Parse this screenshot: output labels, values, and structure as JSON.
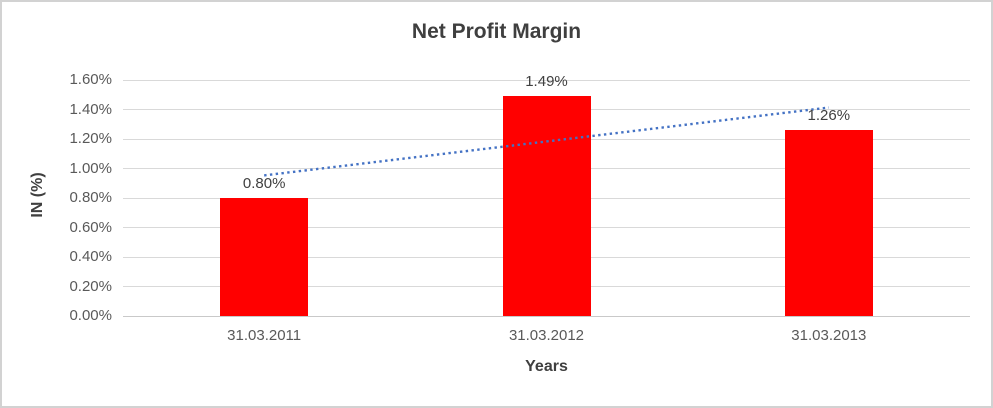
{
  "chart_data": {
    "type": "bar",
    "title": "Net Profit Margin",
    "xlabel": "Years",
    "ylabel": "IN (%)",
    "categories": [
      "31.03.2011",
      "31.03.2012",
      "31.03.2013"
    ],
    "series": [
      {
        "name": "Net Profit Margin",
        "values": [
          0.8,
          1.49,
          1.26
        ]
      }
    ],
    "data_labels": [
      "0.80%",
      "1.49%",
      "1.26%"
    ],
    "y_ticks": [
      "0.00%",
      "0.20%",
      "0.40%",
      "0.60%",
      "0.80%",
      "1.00%",
      "1.20%",
      "1.40%",
      "1.60%"
    ],
    "ylim": [
      0,
      1.6
    ],
    "grid": true,
    "legend": "none",
    "trendline": {
      "type": "linear",
      "style": "dotted",
      "span": "first-to-last-category"
    },
    "colors": {
      "bar": "#ff0000",
      "trendline": "#4472c4",
      "gridline": "#d9d9d9",
      "axis_text": "#595959",
      "title_text": "#3f3f3f",
      "data_label_text": "#404040",
      "chart_border": "#d2d2d2",
      "background": "#ffffff"
    }
  }
}
